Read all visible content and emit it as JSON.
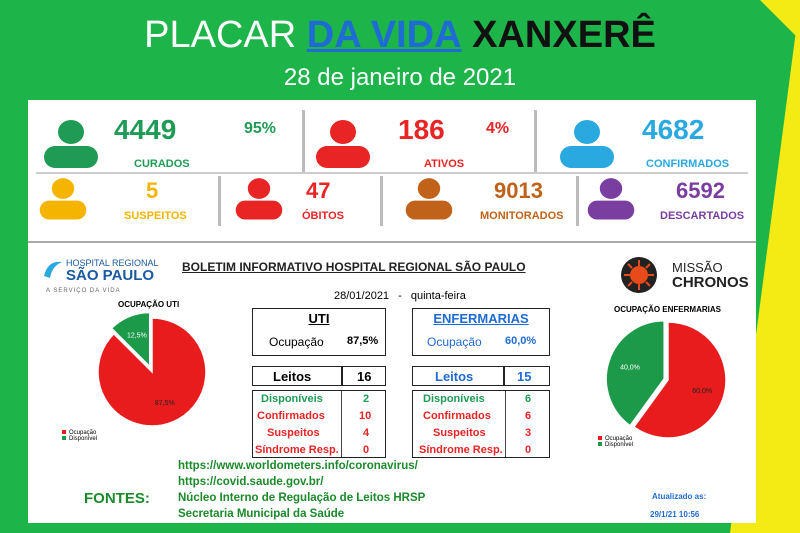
{
  "title": {
    "part1": "PLACAR",
    "part2": "DA VIDA",
    "part3": "XANXERÊ"
  },
  "date": "28 de janeiro de 2021",
  "colors": {
    "background_green": "#1db44a",
    "background_yellow": "#f4ea14",
    "curados": "#1f9b55",
    "ativos": "#e82424",
    "confirmados": "#2aa8e0",
    "suspeitos": "#f4b400",
    "obitos": "#e82424",
    "monitorados": "#c0621a",
    "descartados": "#7a3da0"
  },
  "stats": {
    "curados": {
      "value": "4449",
      "percent": "95%",
      "label": "CURADOS",
      "icon": "person-icon"
    },
    "ativos": {
      "value": "186",
      "percent": "4%",
      "label": "ATIVOS",
      "icon": "person-icon"
    },
    "confirmados": {
      "value": "4682",
      "label": "CONFIRMADOS",
      "icon": "person-icon"
    },
    "suspeitos": {
      "value": "5",
      "label": "SUSPEITOS",
      "icon": "person-icon"
    },
    "obitos": {
      "value": "47",
      "label": "ÓBITOS",
      "icon": "person-icon"
    },
    "monitorados": {
      "value": "9013",
      "label": "MONITORADOS",
      "icon": "person-icon"
    },
    "descartados": {
      "value": "6592",
      "label": "DESCARTADOS",
      "icon": "person-icon"
    }
  },
  "hospital": {
    "logo_line1": "HOSPITAL REGIONAL",
    "logo_line2": "SÃO PAULO",
    "tagline": "A SERVIÇO DA VIDA"
  },
  "bulletin": {
    "title": "BOLETIM INFORMATIVO HOSPITAL REGIONAL SÃO PAULO",
    "date": "28/01/2021",
    "separator": "-",
    "weekday": "quinta-feira"
  },
  "chronos": {
    "line1": "MISSÃO",
    "line2": "CHRONOS"
  },
  "uti": {
    "title": "UTI",
    "occupancy_label": "Ocupação",
    "occupancy_value": "87,5%",
    "leitos_label": "Leitos",
    "leitos_value": "16",
    "rows": [
      {
        "label": "Disponíveis",
        "value": "2"
      },
      {
        "label": "Confirmados",
        "value": "10"
      },
      {
        "label": "Suspeitos",
        "value": "4"
      },
      {
        "label": "Síndrome Resp.",
        "value": "0"
      }
    ]
  },
  "enfermarias": {
    "title": "ENFERMARIAS",
    "occupancy_label": "Ocupação",
    "occupancy_value": "60,0%",
    "leitos_label": "Leitos",
    "leitos_value": "15",
    "rows": [
      {
        "label": "Disponíveis",
        "value": "6"
      },
      {
        "label": "Confirmados",
        "value": "6"
      },
      {
        "label": "Suspeitos",
        "value": "3"
      },
      {
        "label": "Síndrome Resp.",
        "value": "0"
      }
    ]
  },
  "sources": {
    "label": "FONTES:",
    "items": [
      "https://www.worldometers.info/coronavirus/",
      "https://covid.saude.gov.br/",
      "Núcleo Interno de Regulação de Leitos HRSP",
      "Secretaria Municipal da Saúde"
    ]
  },
  "updated": {
    "label": "Atualizado as:",
    "value": "29/1/21 10:56"
  },
  "chart_data": [
    {
      "type": "pie",
      "title": "OCUPAÇÃO UTI",
      "categories": [
        "Ocupação",
        "Disponível"
      ],
      "values": [
        87.5,
        12.5
      ],
      "labels": [
        "87,5%",
        "12,5%"
      ],
      "colors": [
        "#e81c1c",
        "#1c9a4a"
      ],
      "legend": "bottom-left"
    },
    {
      "type": "pie",
      "title": "OCUPAÇÃO ENFERMARIAS",
      "categories": [
        "Ocupação",
        "Disponível"
      ],
      "values": [
        60.0,
        40.0
      ],
      "labels": [
        "60,0%",
        "40,0%"
      ],
      "colors": [
        "#e81c1c",
        "#1c9a4a"
      ],
      "legend": "bottom-left"
    }
  ]
}
